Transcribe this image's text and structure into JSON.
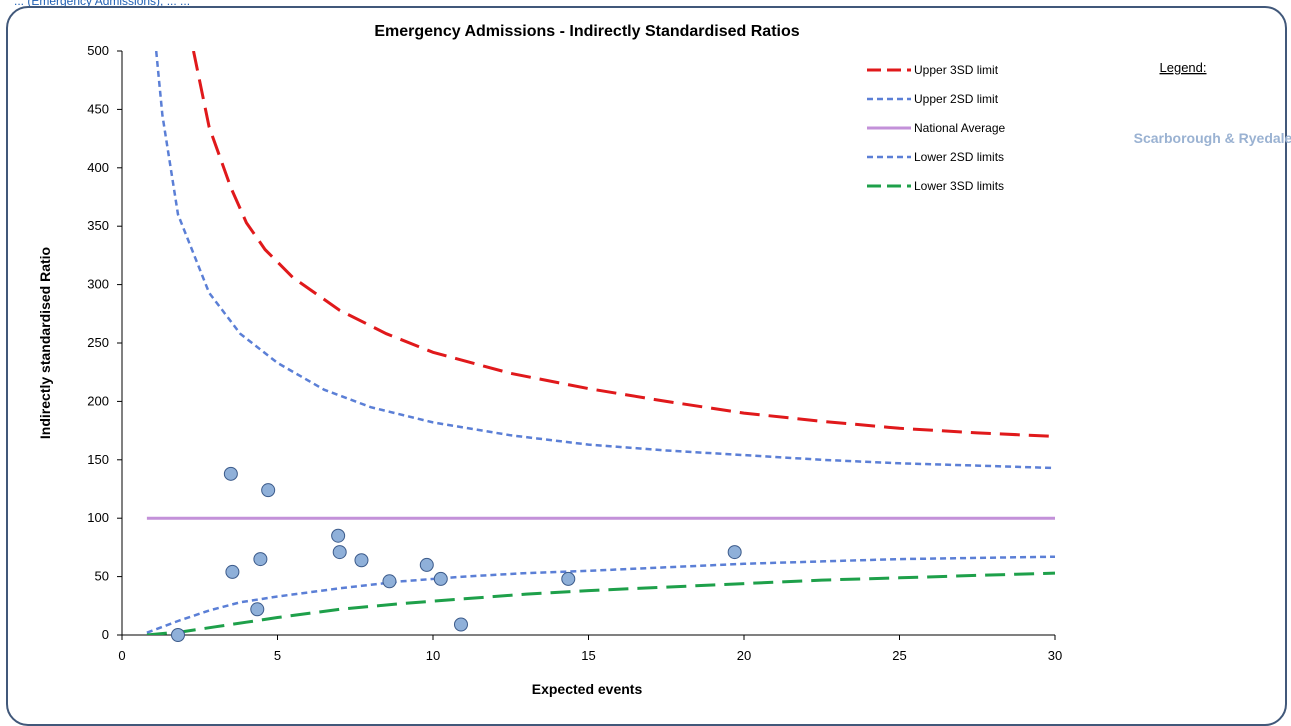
{
  "caption": "... (Emergency Admissions), ... ...",
  "side_legend": {
    "heading": "Legend:",
    "area": "Scarborough & Ryedale"
  },
  "colors": {
    "upper3": "#e0191b",
    "upper2": "#5b7fd6",
    "national": "#c391d9",
    "lower2": "#5b7fd6",
    "lower3": "#1ea04a",
    "point_fill": "#8fb0d9",
    "point_stroke": "#3b5a8a",
    "area_text": "#9ab2d2"
  },
  "chart_data": {
    "type": "scatter",
    "title": "Emergency Admissions - Indirectly Standardised Ratios",
    "xlabel": "Expected events",
    "ylabel": "Indirectly standardised Ratio",
    "xlim": [
      0,
      30
    ],
    "ylim": [
      0,
      500
    ],
    "xticks": [
      0,
      5,
      10,
      15,
      20,
      25,
      30
    ],
    "yticks": [
      0,
      50,
      100,
      150,
      200,
      250,
      300,
      350,
      400,
      450,
      500
    ],
    "grid": false,
    "legend_position": "top-right",
    "series": [
      {
        "name": "Upper 3SD limit",
        "style": "long-dash",
        "color_key": "upper3",
        "points": [
          [
            2.3,
            500
          ],
          [
            2.8,
            435
          ],
          [
            3.5,
            383
          ],
          [
            4.0,
            353
          ],
          [
            4.6,
            330
          ],
          [
            5.5,
            306
          ],
          [
            7.0,
            278
          ],
          [
            8.5,
            258
          ],
          [
            10.0,
            242
          ],
          [
            12.5,
            224
          ],
          [
            15.0,
            211
          ],
          [
            17.5,
            200
          ],
          [
            20.0,
            190
          ],
          [
            22.5,
            183
          ],
          [
            25.0,
            177
          ],
          [
            27.5,
            173
          ],
          [
            30.0,
            170
          ]
        ]
      },
      {
        "name": "Upper 2SD limit",
        "style": "short-dash",
        "color_key": "upper2",
        "points": [
          [
            1.1,
            500
          ],
          [
            1.3,
            445
          ],
          [
            1.8,
            360
          ],
          [
            2.8,
            293
          ],
          [
            3.8,
            258
          ],
          [
            5.0,
            233
          ],
          [
            6.5,
            210
          ],
          [
            8.0,
            195
          ],
          [
            10.0,
            182
          ],
          [
            12.5,
            171
          ],
          [
            15.0,
            163
          ],
          [
            17.5,
            158
          ],
          [
            20.0,
            154
          ],
          [
            22.5,
            150
          ],
          [
            25.0,
            147
          ],
          [
            27.5,
            145
          ],
          [
            30.0,
            143
          ]
        ]
      },
      {
        "name": "National Average",
        "style": "solid",
        "color_key": "national",
        "points": [
          [
            0.8,
            100
          ],
          [
            30.0,
            100
          ]
        ]
      },
      {
        "name": "Lower 2SD limits",
        "style": "short-dash",
        "color_key": "lower2",
        "points": [
          [
            0.8,
            2
          ],
          [
            1.8,
            12
          ],
          [
            2.8,
            21
          ],
          [
            3.8,
            28
          ],
          [
            5.0,
            33
          ],
          [
            7.0,
            40
          ],
          [
            9.0,
            46
          ],
          [
            11.0,
            50
          ],
          [
            13.0,
            53
          ],
          [
            15.0,
            55
          ],
          [
            17.5,
            58
          ],
          [
            20.0,
            61
          ],
          [
            22.5,
            63
          ],
          [
            25.0,
            65
          ],
          [
            27.5,
            66
          ],
          [
            30.0,
            67
          ]
        ]
      },
      {
        "name": "Lower 3SD limits",
        "style": "long-dash",
        "color_key": "lower3",
        "points": [
          [
            0.8,
            0
          ],
          [
            2.0,
            3
          ],
          [
            3.0,
            7
          ],
          [
            4.0,
            11
          ],
          [
            5.0,
            15
          ],
          [
            7.0,
            22
          ],
          [
            9.0,
            27
          ],
          [
            11.0,
            31
          ],
          [
            13.0,
            35
          ],
          [
            15.0,
            38
          ],
          [
            17.5,
            41
          ],
          [
            20.0,
            44
          ],
          [
            22.5,
            47
          ],
          [
            25.0,
            49
          ],
          [
            27.5,
            51
          ],
          [
            30.0,
            53
          ]
        ]
      },
      {
        "name": "Scarborough & Ryedale",
        "style": "points",
        "color_key": "point_fill",
        "points": [
          [
            1.8,
            0
          ],
          [
            3.5,
            138
          ],
          [
            3.55,
            54
          ],
          [
            4.35,
            22
          ],
          [
            4.45,
            65
          ],
          [
            4.7,
            124
          ],
          [
            6.95,
            85
          ],
          [
            7.0,
            71
          ],
          [
            7.7,
            64
          ],
          [
            8.6,
            46
          ],
          [
            9.8,
            60
          ],
          [
            10.25,
            48
          ],
          [
            10.9,
            9
          ],
          [
            14.35,
            48
          ],
          [
            19.7,
            71
          ]
        ]
      }
    ]
  }
}
